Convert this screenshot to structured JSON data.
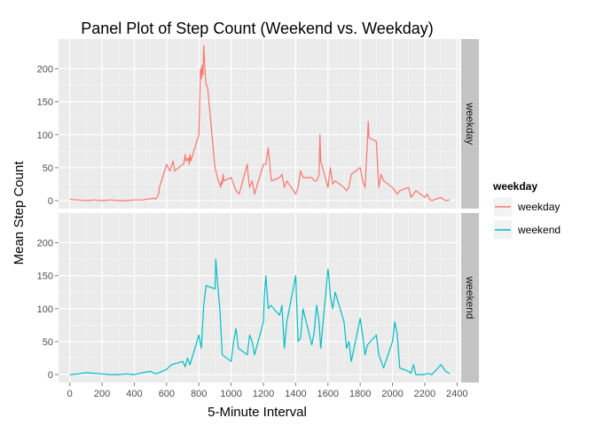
{
  "chart_data": {
    "type": "line",
    "title": "Panel Plot of Step Count (Weekend vs. Weekday)",
    "xlabel": "5-Minute Interval",
    "ylabel": "Mean Step Count",
    "xlim": [
      -70,
      2415
    ],
    "ylim": [
      -12,
      245
    ],
    "x_ticks": [
      0,
      200,
      400,
      600,
      800,
      1000,
      1200,
      1400,
      1600,
      1800,
      2000,
      2200,
      2400
    ],
    "y_ticks": [
      0,
      50,
      100,
      150,
      200
    ],
    "grid": true,
    "legend": {
      "title": "weekday",
      "position": "right",
      "entries": [
        "weekday",
        "weekend"
      ]
    },
    "panels": [
      {
        "strip": "weekday",
        "series": [
          {
            "name": "weekday",
            "color": "#F8766D",
            "x": [
              0,
              50,
              100,
              150,
              200,
              250,
              300,
              350,
              400,
              450,
              500,
              510,
              520,
              530,
              540,
              550,
              555,
              600,
              620,
              640,
              650,
              700,
              705,
              715,
              720,
              735,
              740,
              745,
              750,
              800,
              805,
              810,
              815,
              820,
              825,
              830,
              835,
              840,
              845,
              850,
              855,
              900,
              910,
              915,
              920,
              930,
              935,
              940,
              945,
              950,
              955,
              1000,
              1030,
              1050,
              1100,
              1105,
              1115,
              1130,
              1145,
              1200,
              1205,
              1215,
              1230,
              1245,
              1250,
              1300,
              1315,
              1330,
              1345,
              1400,
              1415,
              1430,
              1445,
              1500,
              1515,
              1530,
              1545,
              1550,
              1555,
              1600,
              1615,
              1630,
              1645,
              1700,
              1715,
              1730,
              1745,
              1800,
              1815,
              1830,
              1845,
              1850,
              1855,
              1900,
              1915,
              1930,
              1945,
              2000,
              2015,
              2030,
              2045,
              2100,
              2115,
              2130,
              2145,
              2200,
              2215,
              2230,
              2245,
              2300,
              2315,
              2330,
              2355
            ],
            "y": [
              2,
              1,
              0,
              1,
              0,
              1,
              0,
              0,
              1,
              1,
              3,
              3,
              4,
              2,
              5,
              10,
              20,
              55,
              45,
              60,
              45,
              55,
              55,
              70,
              60,
              65,
              55,
              70,
              60,
              100,
              150,
              200,
              185,
              205,
              190,
              235,
              210,
              190,
              175,
              175,
              170,
              50,
              40,
              35,
              30,
              25,
              20,
              30,
              25,
              40,
              30,
              35,
              15,
              10,
              55,
              40,
              20,
              30,
              10,
              55,
              55,
              55,
              80,
              40,
              30,
              35,
              40,
              20,
              30,
              10,
              20,
              45,
              35,
              35,
              30,
              30,
              40,
              100,
              60,
              20,
              50,
              25,
              30,
              20,
              15,
              20,
              40,
              50,
              30,
              20,
              90,
              120,
              95,
              90,
              20,
              40,
              30,
              20,
              15,
              10,
              15,
              20,
              5,
              10,
              15,
              5,
              10,
              2,
              0,
              5,
              2,
              0,
              1
            ]
          }
        ]
      },
      {
        "strip": "weekend",
        "series": [
          {
            "name": "weekend",
            "color": "#00BFC4",
            "x": [
              0,
              50,
              100,
              150,
              200,
              250,
              300,
              350,
              400,
              450,
              500,
              530,
              555,
              600,
              630,
              700,
              715,
              730,
              745,
              800,
              815,
              830,
              845,
              900,
              905,
              915,
              930,
              945,
              1000,
              1015,
              1030,
              1045,
              1100,
              1115,
              1130,
              1145,
              1200,
              1205,
              1215,
              1230,
              1245,
              1300,
              1315,
              1330,
              1345,
              1400,
              1415,
              1430,
              1445,
              1500,
              1515,
              1530,
              1545,
              1555,
              1600,
              1605,
              1615,
              1630,
              1645,
              1700,
              1715,
              1730,
              1745,
              1800,
              1815,
              1830,
              1845,
              1900,
              1915,
              1930,
              1945,
              2000,
              2015,
              2030,
              2045,
              2100,
              2115,
              2130,
              2145,
              2200,
              2215,
              2230,
              2245,
              2300,
              2315,
              2330,
              2355
            ],
            "y": [
              0,
              1,
              3,
              2,
              1,
              0,
              0,
              1,
              0,
              3,
              5,
              1,
              3,
              8,
              15,
              20,
              12,
              25,
              15,
              60,
              40,
              105,
              135,
              130,
              175,
              140,
              100,
              30,
              20,
              50,
              70,
              40,
              30,
              60,
              50,
              30,
              80,
              115,
              150,
              100,
              105,
              90,
              105,
              40,
              80,
              150,
              50,
              55,
              100,
              45,
              65,
              105,
              80,
              40,
              160,
              150,
              120,
              100,
              125,
              80,
              40,
              50,
              20,
              85,
              60,
              30,
              45,
              60,
              30,
              20,
              10,
              50,
              80,
              60,
              10,
              5,
              2,
              15,
              0,
              0,
              2,
              1,
              0,
              15,
              10,
              5,
              1
            ]
          }
        ]
      }
    ]
  }
}
